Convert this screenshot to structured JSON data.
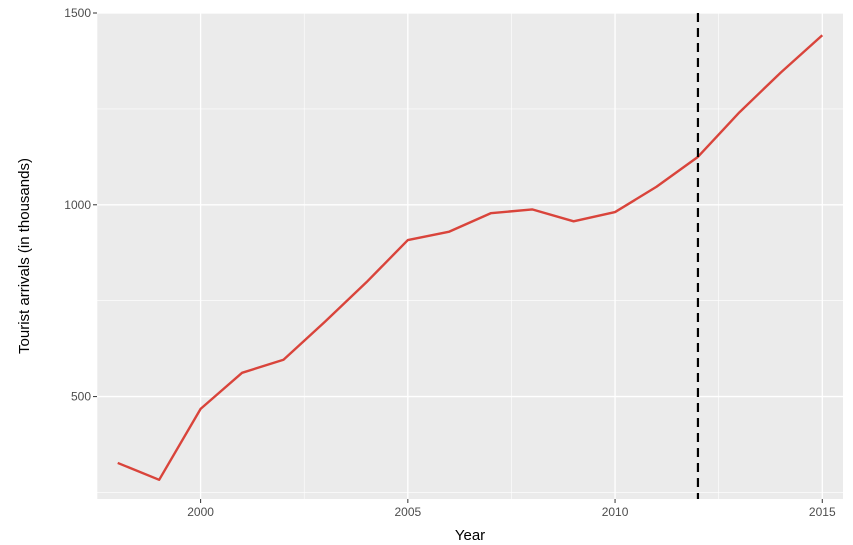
{
  "chart_data": {
    "type": "line",
    "title": "",
    "xlabel": "Year",
    "ylabel": "Tourist arrivals (in thousands)",
    "x": [
      1998,
      1999,
      2000,
      2001,
      2002,
      2003,
      2004,
      2005,
      2006,
      2007,
      2008,
      2009,
      2010,
      2011,
      2012,
      2013,
      2014,
      2015
    ],
    "series": [
      {
        "name": "",
        "color": "#d9443b",
        "values": [
          327,
          283,
          468,
          562,
          596,
          695,
          798,
          908,
          930,
          978,
          988,
          957,
          981,
          1047,
          1125,
          1241,
          1345,
          1442
        ]
      }
    ],
    "xlim": [
      1997.5,
      2015.5
    ],
    "ylim": [
      233,
      1500
    ],
    "xticks": [
      2000,
      2005,
      2010,
      2015
    ],
    "yticks": [
      500,
      1000,
      1500
    ],
    "grid": true,
    "vline": {
      "x": 2012,
      "style": "dashed",
      "color": "#000000"
    },
    "background": "#ebebeb",
    "gridColor": "#ffffff"
  }
}
